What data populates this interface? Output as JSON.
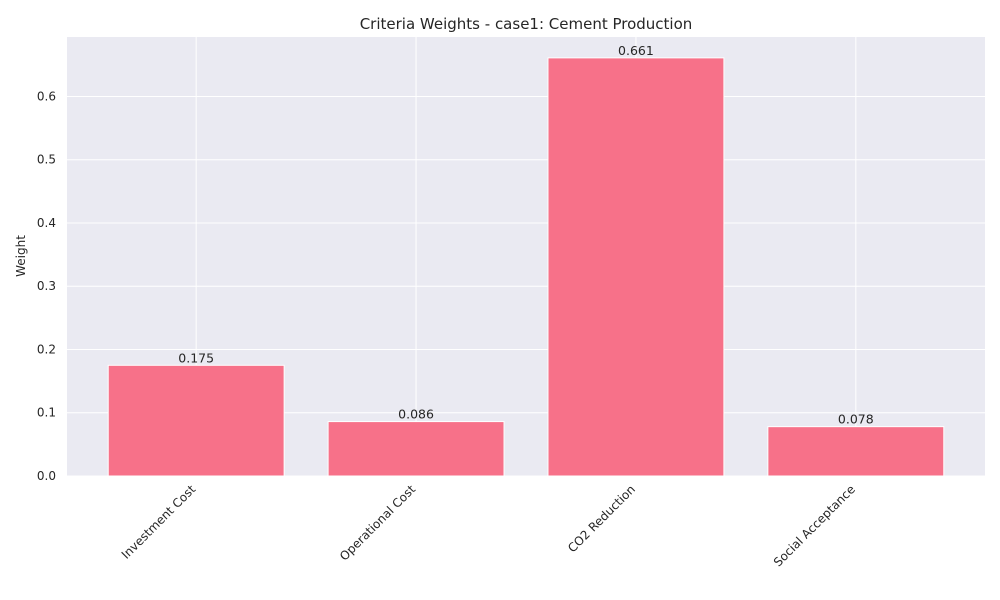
{
  "chart_data": {
    "type": "bar",
    "title": "Criteria Weights - case1: Cement Production",
    "xlabel": "",
    "ylabel": "Weight",
    "categories": [
      "Investment Cost",
      "Operational Cost",
      "CO2 Reduction",
      "Social Acceptance"
    ],
    "values": [
      0.175,
      0.086,
      0.661,
      0.078
    ],
    "data_labels": [
      "0.175",
      "0.086",
      "0.661",
      "0.078"
    ],
    "ylim": [
      0,
      0.694
    ],
    "yticks": [
      0.0,
      0.1,
      0.2,
      0.3,
      0.4,
      0.5,
      0.6
    ],
    "ytick_labels": [
      "0.0",
      "0.1",
      "0.2",
      "0.3",
      "0.4",
      "0.5",
      "0.6"
    ],
    "grid": true,
    "legend": "none",
    "bar_color": "#f77189",
    "plot_background": "#eaeaf2",
    "grid_color": "#ffffff"
  }
}
